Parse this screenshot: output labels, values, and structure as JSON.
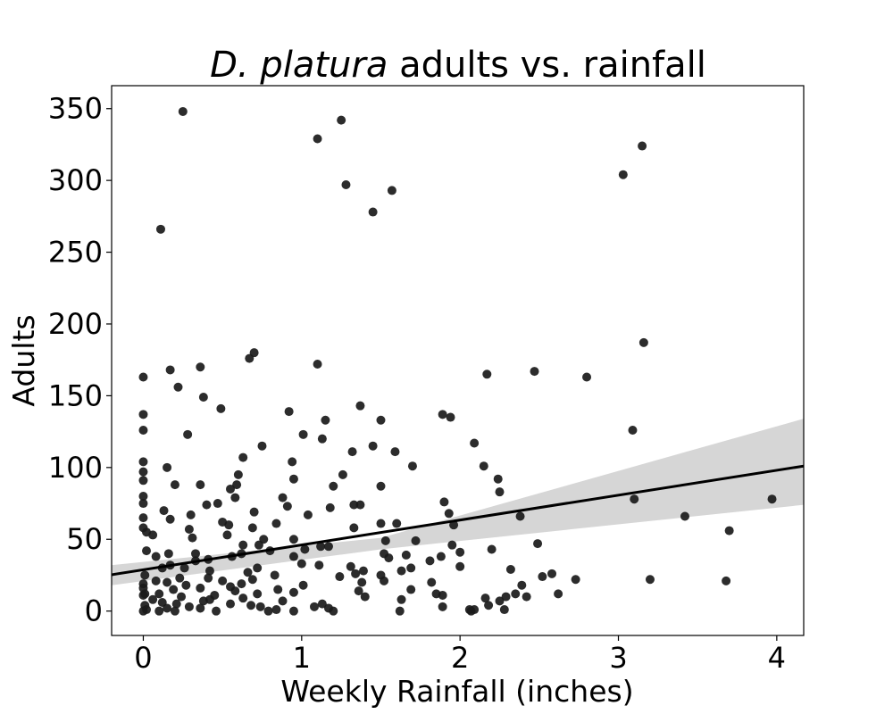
{
  "chart_data": {
    "type": "scatter",
    "title": {
      "species": "D. platura",
      "rest": " adults vs. rainfall"
    },
    "xlabel": "Weekly Rainfall (inches)",
    "ylabel": "Adults",
    "xlim": [
      -0.2,
      4.17
    ],
    "ylim": [
      -17,
      366
    ],
    "xticks": [
      0,
      1,
      2,
      3,
      4
    ],
    "yticks": [
      0,
      50,
      100,
      150,
      200,
      250,
      300,
      350
    ],
    "point_color": "#1a1a1a",
    "regression": {
      "color": "#000000",
      "ci_color": "#d6d6d6",
      "line": [
        [
          -0.2,
          25.3
        ],
        [
          4.17,
          101.0
        ]
      ],
      "ci_upper": [
        [
          -0.2,
          32
        ],
        [
          1.5,
          51
        ],
        [
          4.17,
          134
        ]
      ],
      "ci_lower": [
        [
          -0.2,
          18
        ],
        [
          1.5,
          43
        ],
        [
          4.17,
          74
        ]
      ]
    },
    "points": [
      [
        0.25,
        348
      ],
      [
        1.25,
        342
      ],
      [
        1.1,
        329
      ],
      [
        3.15,
        324
      ],
      [
        3.03,
        304
      ],
      [
        1.28,
        297
      ],
      [
        1.57,
        293
      ],
      [
        1.45,
        278
      ],
      [
        0.11,
        266
      ],
      [
        3.16,
        187
      ],
      [
        0.7,
        180
      ],
      [
        0.67,
        176
      ],
      [
        1.1,
        172
      ],
      [
        0.36,
        170
      ],
      [
        0.17,
        168
      ],
      [
        2.47,
        167
      ],
      [
        2.17,
        165
      ],
      [
        2.8,
        163
      ],
      [
        0.0,
        163
      ],
      [
        0.22,
        156
      ],
      [
        0.38,
        149
      ],
      [
        1.37,
        143
      ],
      [
        0.49,
        141
      ],
      [
        0.92,
        139
      ],
      [
        1.89,
        137
      ],
      [
        0.0,
        137
      ],
      [
        1.94,
        135
      ],
      [
        1.5,
        133
      ],
      [
        1.15,
        133
      ],
      [
        0.0,
        126
      ],
      [
        3.09,
        126
      ],
      [
        0.28,
        123
      ],
      [
        1.01,
        123
      ],
      [
        1.13,
        120
      ],
      [
        2.09,
        117
      ],
      [
        0.75,
        115
      ],
      [
        1.45,
        115
      ],
      [
        1.32,
        111
      ],
      [
        1.59,
        111
      ],
      [
        0.63,
        107
      ],
      [
        0.94,
        104
      ],
      [
        0.0,
        104
      ],
      [
        1.7,
        101
      ],
      [
        2.15,
        101
      ],
      [
        0.15,
        100
      ],
      [
        0.0,
        97
      ],
      [
        0.6,
        95
      ],
      [
        1.26,
        95
      ],
      [
        0.95,
        92
      ],
      [
        2.24,
        92
      ],
      [
        0.0,
        91
      ],
      [
        0.36,
        88
      ],
      [
        0.59,
        88
      ],
      [
        0.2,
        88
      ],
      [
        1.5,
        87
      ],
      [
        1.2,
        87
      ],
      [
        0.55,
        85
      ],
      [
        2.25,
        83
      ],
      [
        0.0,
        80
      ],
      [
        0.58,
        79
      ],
      [
        0.88,
        79
      ],
      [
        3.1,
        78
      ],
      [
        3.97,
        78
      ],
      [
        1.9,
        76
      ],
      [
        0.0,
        75
      ],
      [
        0.47,
        75
      ],
      [
        0.4,
        74
      ],
      [
        1.33,
        74
      ],
      [
        1.37,
        74
      ],
      [
        0.91,
        73
      ],
      [
        1.18,
        72
      ],
      [
        0.13,
        70
      ],
      [
        0.7,
        69
      ],
      [
        1.93,
        68
      ],
      [
        0.3,
        67
      ],
      [
        1.04,
        67
      ],
      [
        2.38,
        66
      ],
      [
        3.42,
        66
      ],
      [
        0.0,
        65
      ],
      [
        0.17,
        64
      ],
      [
        0.5,
        62
      ],
      [
        0.84,
        61
      ],
      [
        1.5,
        61
      ],
      [
        1.6,
        61
      ],
      [
        0.54,
        60
      ],
      [
        1.96,
        60
      ],
      [
        0.0,
        58
      ],
      [
        0.29,
        57
      ],
      [
        1.33,
        58
      ],
      [
        3.7,
        56
      ],
      [
        0.69,
        58
      ],
      [
        0.02,
        55
      ],
      [
        0.53,
        53
      ],
      [
        0.06,
        53
      ],
      [
        0.31,
        51
      ],
      [
        0.76,
        50
      ],
      [
        0.95,
        50
      ],
      [
        1.53,
        49
      ],
      [
        1.72,
        49
      ],
      [
        2.49,
        47
      ],
      [
        0.63,
        46
      ],
      [
        0.73,
        46
      ],
      [
        1.95,
        46
      ],
      [
        1.12,
        45
      ],
      [
        1.17,
        45
      ],
      [
        0.02,
        42
      ],
      [
        0.8,
        42
      ],
      [
        1.02,
        43
      ],
      [
        2.2,
        43
      ],
      [
        0.33,
        40
      ],
      [
        0.56,
        38
      ],
      [
        1.52,
        40
      ],
      [
        0.62,
        40
      ],
      [
        0.16,
        40
      ],
      [
        2.0,
        41
      ],
      [
        1.66,
        39
      ],
      [
        0.95,
        38
      ],
      [
        1.88,
        38
      ],
      [
        0.08,
        38
      ],
      [
        0.41,
        36
      ],
      [
        1.55,
        37
      ],
      [
        0.33,
        35
      ],
      [
        1.81,
        35
      ],
      [
        1.0,
        33
      ],
      [
        0.17,
        32
      ],
      [
        1.11,
        32
      ],
      [
        1.31,
        31
      ],
      [
        2.0,
        31
      ],
      [
        0.26,
        30
      ],
      [
        0.72,
        30
      ],
      [
        1.69,
        30
      ],
      [
        0.12,
        30
      ],
      [
        2.32,
        29
      ],
      [
        0.42,
        28
      ],
      [
        1.39,
        28
      ],
      [
        1.63,
        28
      ],
      [
        0.66,
        27
      ],
      [
        1.34,
        26
      ],
      [
        2.58,
        26
      ],
      [
        0.83,
        25
      ],
      [
        0.01,
        25
      ],
      [
        1.5,
        25
      ],
      [
        0.41,
        23
      ],
      [
        2.52,
        24
      ],
      [
        1.24,
        24
      ],
      [
        0.23,
        23
      ],
      [
        0.69,
        22
      ],
      [
        1.52,
        21
      ],
      [
        3.2,
        22
      ],
      [
        0.08,
        21
      ],
      [
        2.73,
        22
      ],
      [
        0.5,
        21
      ],
      [
        1.38,
        20
      ],
      [
        0.15,
        20
      ],
      [
        1.82,
        20
      ],
      [
        3.68,
        21
      ],
      [
        0.0,
        19
      ],
      [
        1.01,
        18
      ],
      [
        0.62,
        19
      ],
      [
        0.27,
        18
      ],
      [
        2.39,
        18
      ],
      [
        0.55,
        17
      ],
      [
        0.36,
        16
      ],
      [
        0.0,
        16
      ],
      [
        1.69,
        15
      ],
      [
        0.19,
        15
      ],
      [
        0.58,
        14
      ],
      [
        0.85,
        15
      ],
      [
        1.36,
        14
      ],
      [
        0.95,
        13
      ],
      [
        0.01,
        12
      ],
      [
        0.1,
        12
      ],
      [
        1.85,
        12
      ],
      [
        2.62,
        12
      ],
      [
        0.72,
        12
      ],
      [
        2.35,
        12
      ],
      [
        0.45,
        11
      ],
      [
        1.89,
        11
      ],
      [
        0.0,
        11
      ],
      [
        2.42,
        10
      ],
      [
        0.24,
        10
      ],
      [
        2.29,
        10
      ],
      [
        1.4,
        10
      ],
      [
        0.63,
        9
      ],
      [
        2.16,
        9
      ],
      [
        0.06,
        8
      ],
      [
        1.63,
        8
      ],
      [
        0.42,
        8
      ],
      [
        0.88,
        7
      ],
      [
        2.25,
        7
      ],
      [
        0.38,
        7
      ],
      [
        0.12,
        6
      ],
      [
        0.21,
        5
      ],
      [
        1.13,
        5
      ],
      [
        0.55,
        5
      ],
      [
        2.18,
        4
      ],
      [
        0.01,
        4
      ],
      [
        0.68,
        4
      ],
      [
        1.08,
        3
      ],
      [
        0.29,
        3
      ],
      [
        1.89,
        3
      ],
      [
        0.74,
        3
      ],
      [
        1.17,
        2
      ],
      [
        2.06,
        1
      ],
      [
        0.15,
        2
      ],
      [
        0.36,
        2
      ],
      [
        0.84,
        1
      ],
      [
        2.28,
        1
      ],
      [
        0.02,
        1
      ],
      [
        2.09,
        1
      ],
      [
        0.95,
        0
      ],
      [
        1.62,
        0
      ],
      [
        0.0,
        0
      ],
      [
        2.07,
        0
      ],
      [
        0.46,
        0
      ],
      [
        0.1,
        0
      ],
      [
        0.79,
        0
      ],
      [
        1.2,
        0
      ],
      [
        0.2,
        0
      ]
    ]
  }
}
